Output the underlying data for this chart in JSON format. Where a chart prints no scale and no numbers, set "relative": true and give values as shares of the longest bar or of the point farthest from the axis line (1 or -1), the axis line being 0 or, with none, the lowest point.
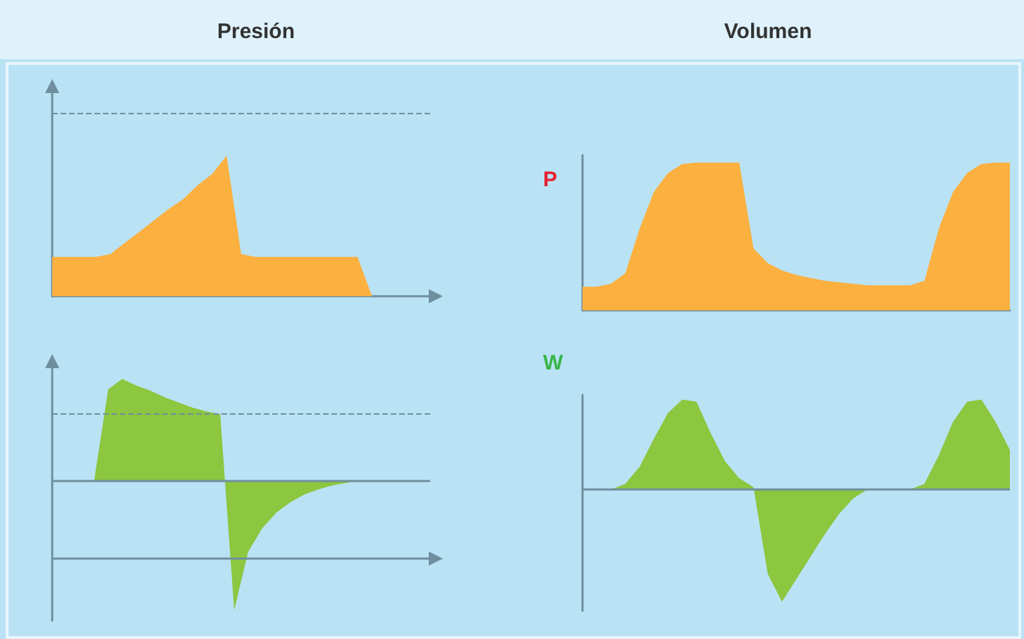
{
  "chart_data": [
    {
      "type": "area",
      "title": "Presión",
      "relative": true,
      "categories": [
        null,
        null,
        null,
        null,
        null,
        null,
        null,
        null,
        null,
        null,
        null,
        null,
        null,
        null,
        null,
        null,
        null,
        null,
        null,
        null,
        null,
        null,
        null,
        null,
        null,
        null,
        null
      ],
      "series": [
        {
          "color": "#fbb040",
          "values": [
            0.28,
            0.28,
            0.28,
            0.28,
            0.3,
            0.38,
            0.46,
            0.54,
            0.62,
            0.69,
            0.79,
            0.87,
            1,
            0.3,
            0.28,
            0.28,
            0.28,
            0.28,
            0.28,
            0.28,
            0.28,
            0.28,
            0,
            0,
            0,
            0,
            0
          ]
        }
      ],
      "ref_lines": [
        {
          "axis": "y",
          "value": 1.3,
          "label": null,
          "color": "#6f8f9e",
          "line_style": "dashed"
        }
      ]
    },
    {
      "type": "area",
      "title": "Volumen",
      "ylabel": "P",
      "relative": true,
      "categories": [
        null,
        null,
        null,
        null,
        null,
        null,
        null,
        null,
        null,
        null,
        null,
        null,
        null,
        null,
        null,
        null,
        null,
        null,
        null,
        null,
        null,
        null,
        null,
        null,
        null,
        null,
        null,
        null,
        null,
        null,
        null
      ],
      "series": [
        {
          "color": "#fbb040",
          "values": [
            0.16,
            0.16,
            0.18,
            0.25,
            0.55,
            0.8,
            0.93,
            0.99,
            1,
            1,
            1,
            1,
            0.42,
            0.32,
            0.27,
            0.24,
            0.22,
            0.2,
            0.19,
            0.18,
            0.17,
            0.17,
            0.17,
            0.17,
            0.2,
            0.55,
            0.8,
            0.93,
            0.99,
            1,
            1
          ]
        }
      ]
    },
    {
      "type": "area",
      "relative": true,
      "categories": [
        null,
        null,
        null,
        null,
        null,
        null,
        null,
        null,
        null,
        null,
        null,
        null,
        null,
        null,
        null,
        null,
        null,
        null,
        null,
        null,
        null,
        null,
        null,
        null,
        null,
        null,
        null,
        null
      ],
      "series": [
        {
          "color": "#8dc63f",
          "values": [
            0,
            0,
            0,
            0,
            0.7,
            0.78,
            0.73,
            0.69,
            0.64,
            0.6,
            0.56,
            0.53,
            0.51,
            -1,
            -0.55,
            -0.37,
            -0.25,
            -0.17,
            -0.11,
            -0.07,
            -0.04,
            -0.02,
            0,
            0,
            0,
            0,
            0,
            0
          ]
        }
      ],
      "ref_lines": [
        {
          "axis": "y",
          "value": 0.51,
          "label": null,
          "color": "#6f8f9e",
          "line_style": "dashed"
        },
        {
          "axis": "y",
          "value": 0,
          "label": null,
          "color": "#6f8f9e",
          "line_style": "solid"
        },
        {
          "axis": "y",
          "value": -0.6,
          "label": null,
          "color": "#6f8f9e",
          "line_style": "solid"
        }
      ]
    },
    {
      "type": "area",
      "ylabel": "W",
      "relative": true,
      "categories": [
        null,
        null,
        null,
        null,
        null,
        null,
        null,
        null,
        null,
        null,
        null,
        null,
        null,
        null,
        null,
        null,
        null,
        null,
        null,
        null,
        null,
        null,
        null,
        null,
        null,
        null,
        null,
        null,
        null,
        null,
        null
      ],
      "series": [
        {
          "color": "#8dc63f",
          "values": [
            0,
            0,
            0,
            0.05,
            0.2,
            0.45,
            0.68,
            0.8,
            0.78,
            0.5,
            0.25,
            0.1,
            0.02,
            -0.75,
            -1,
            -0.8,
            -0.6,
            -0.4,
            -0.22,
            -0.08,
            0,
            0,
            0,
            0,
            0.05,
            0.3,
            0.6,
            0.78,
            0.8,
            0.6,
            0.35
          ]
        }
      ],
      "ref_lines": [
        {
          "axis": "y",
          "value": 0,
          "label": null,
          "color": "#6f8f9e",
          "line_style": "solid"
        }
      ]
    }
  ]
}
